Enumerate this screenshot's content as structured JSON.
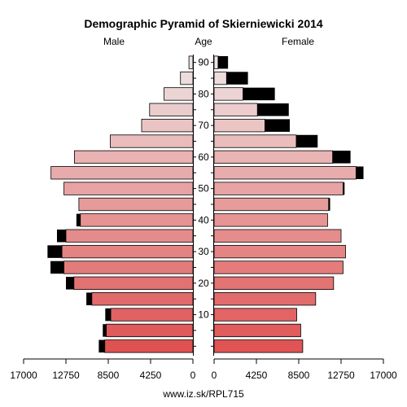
{
  "chart_data": {
    "type": "bar",
    "title": "Demographic Pyramid of Skierniewicki 2014",
    "left_label": "Male",
    "center_label": "Age",
    "right_label": "Female",
    "source": "www.iz.sk/RPL715",
    "x_ticks_left": [
      "17000",
      "12750",
      "8500",
      "4250",
      "0"
    ],
    "x_ticks_right": [
      "0",
      "4250",
      "8500",
      "12750",
      "17000"
    ],
    "x_tick_values": [
      0,
      4250,
      8500,
      12750,
      17000
    ],
    "xlim": [
      0,
      17000
    ],
    "age_ticks": [
      10,
      20,
      30,
      40,
      50,
      60,
      70,
      80,
      90
    ],
    "age_groups": [
      "0-4",
      "5-9",
      "10-14",
      "15-19",
      "20-24",
      "25-29",
      "30-34",
      "35-39",
      "40-44",
      "45-49",
      "50-54",
      "55-59",
      "60-64",
      "65-69",
      "70-74",
      "75-79",
      "80-84",
      "85-89",
      "90+"
    ],
    "male": [
      8850,
      8700,
      8250,
      10150,
      11950,
      12950,
      13150,
      12750,
      11300,
      11450,
      12950,
      14250,
      11900,
      8300,
      5150,
      4350,
      2900,
      1250,
      400
    ],
    "male_excess": [
      600,
      350,
      550,
      550,
      800,
      1350,
      1450,
      900,
      400,
      0,
      0,
      0,
      0,
      0,
      0,
      0,
      0,
      0,
      0
    ],
    "female": [
      8900,
      8700,
      8300,
      10200,
      12000,
      12950,
      13200,
      12750,
      11400,
      11500,
      12950,
      14250,
      11900,
      8250,
      5100,
      4350,
      2900,
      1250,
      400
    ],
    "female_excess": [
      0,
      0,
      0,
      0,
      0,
      0,
      0,
      0,
      0,
      150,
      150,
      750,
      1800,
      2150,
      2500,
      3150,
      3200,
      2150,
      1000
    ]
  }
}
